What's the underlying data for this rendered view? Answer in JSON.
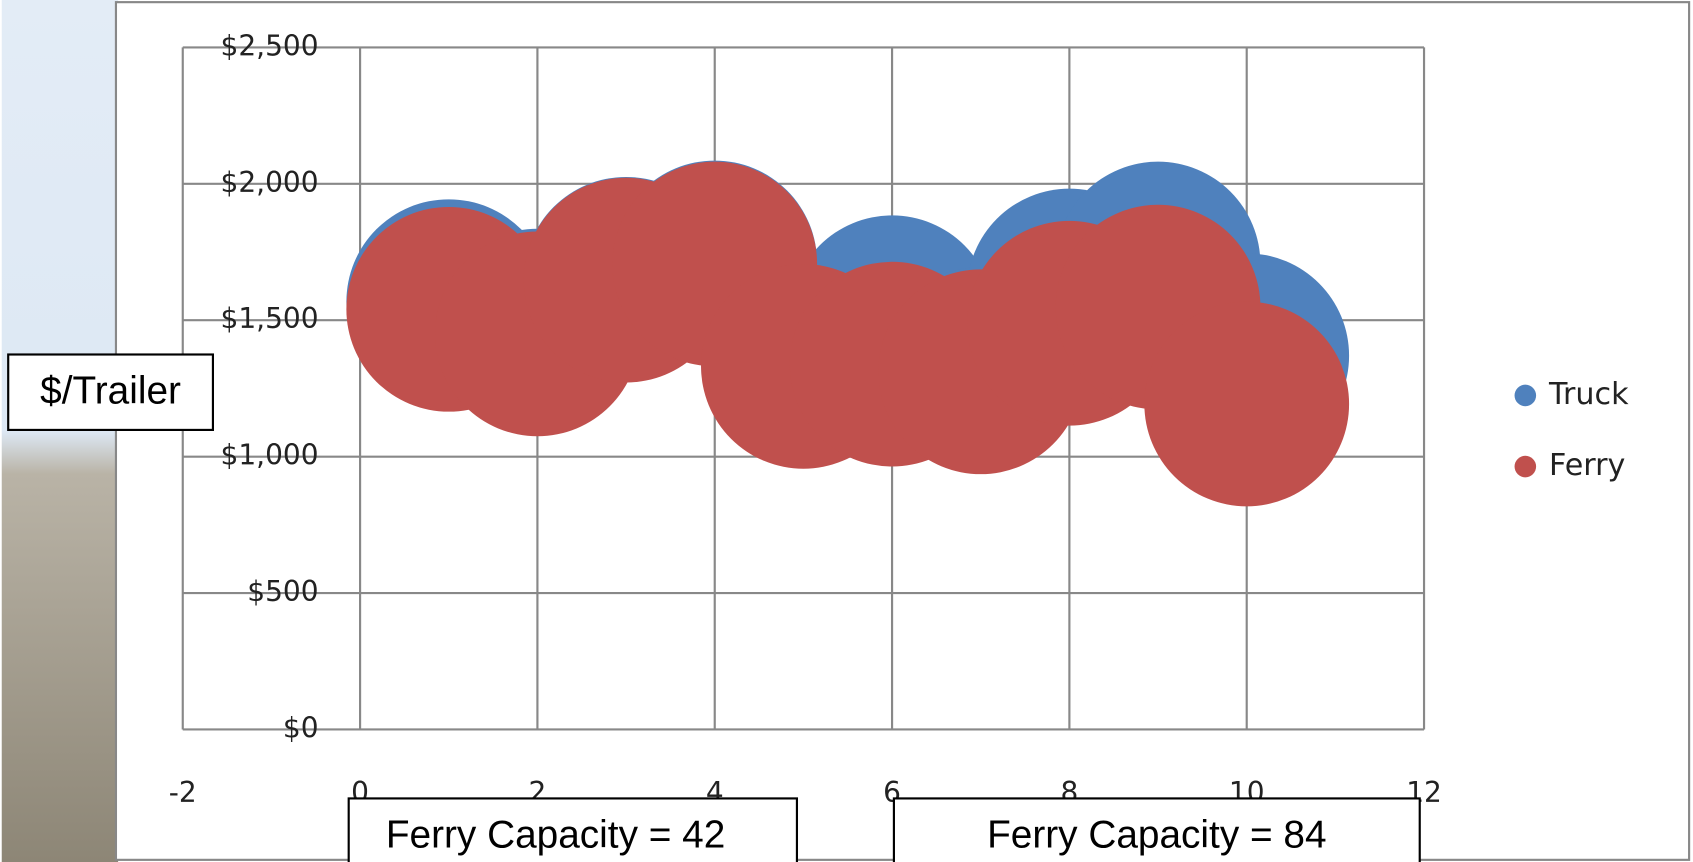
{
  "chart_data": {
    "type": "bubble",
    "y_label": "$/Trailer",
    "annotations": [
      "Ferry Capacity = 42",
      "Ferry Capacity = 84"
    ],
    "x": [
      1,
      2,
      3,
      4,
      5,
      6,
      7,
      8,
      9,
      10
    ],
    "series": [
      {
        "name": "Truck",
        "color": "#4f81bd",
        "values": [
          1568,
          1460,
          1650,
          1710,
          1340,
          1509,
          1320,
          1607,
          1706,
          1370
        ],
        "sizes": [
          1,
          1,
          1,
          1,
          1,
          1,
          1,
          1,
          1,
          1
        ]
      },
      {
        "name": "Ferry",
        "color": "#c0504d",
        "values": [
          1540,
          1450,
          1647,
          1706,
          1331,
          1339,
          1311,
          1489,
          1548,
          1193
        ],
        "sizes": [
          1,
          1,
          1,
          1,
          1,
          1,
          1,
          1,
          1,
          1
        ]
      }
    ],
    "xlim": [
      -2,
      12
    ],
    "xticks": [
      -2,
      0,
      2,
      4,
      6,
      8,
      10,
      12
    ],
    "ylim": [
      0,
      2500
    ],
    "yticks": [
      {
        "value": 0,
        "label": "$0"
      },
      {
        "value": 500,
        "label": "$500"
      },
      {
        "value": 1000,
        "label": "$1,000"
      },
      {
        "value": 1500,
        "label": "$1,500"
      },
      {
        "value": 2000,
        "label": "$2,000"
      },
      {
        "value": 2500,
        "label": "$2,500"
      }
    ],
    "grid": true,
    "legend": "right"
  }
}
